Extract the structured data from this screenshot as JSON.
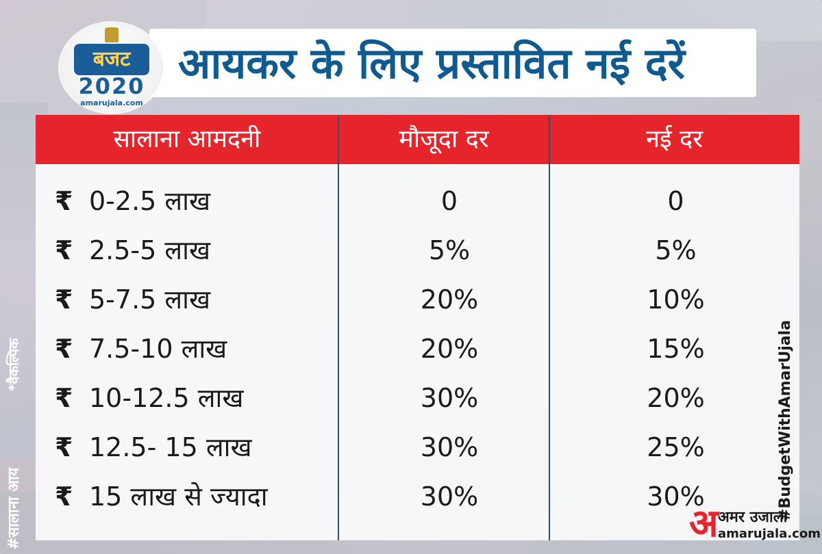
{
  "title": "आयकर के लिए प्रस्तावित नई दरें",
  "logo": {
    "badge": "बजट",
    "year": "2020",
    "site": "amarujala.com"
  },
  "table": {
    "headers": [
      "सालाना आमदनी",
      "मौजूदा दर",
      "नई दर"
    ],
    "currency_symbol": "₹",
    "rows": [
      {
        "income": "0-2.5 लाख",
        "current": "0",
        "new": "0"
      },
      {
        "income": "2.5-5 लाख",
        "current": "5%",
        "new": "5%"
      },
      {
        "income": "5-7.5 लाख",
        "current": "20%",
        "new": "10%"
      },
      {
        "income": "7.5-10 लाख",
        "current": "20%",
        "new": "15%"
      },
      {
        "income": "10-12.5 लाख",
        "current": "30%",
        "new": "20%"
      },
      {
        "income": "12.5- 15 लाख",
        "current": "30%",
        "new": "25%"
      },
      {
        "income": "15 लाख से ज्यादा",
        "current": "30%",
        "new": "30%"
      }
    ]
  },
  "side_notes": {
    "optional": "*वैकल्पिक",
    "annual_income": "#सालाना आय",
    "hashtag": "#BudgetWithAmarUjala"
  },
  "footer_logo": {
    "mark": "अ",
    "name": "अमर उजाला",
    "site": "amarujala.com"
  },
  "colors": {
    "title": "#0f5a8e",
    "header_bg": "#e5252b",
    "divider": "#2b4f7a"
  }
}
